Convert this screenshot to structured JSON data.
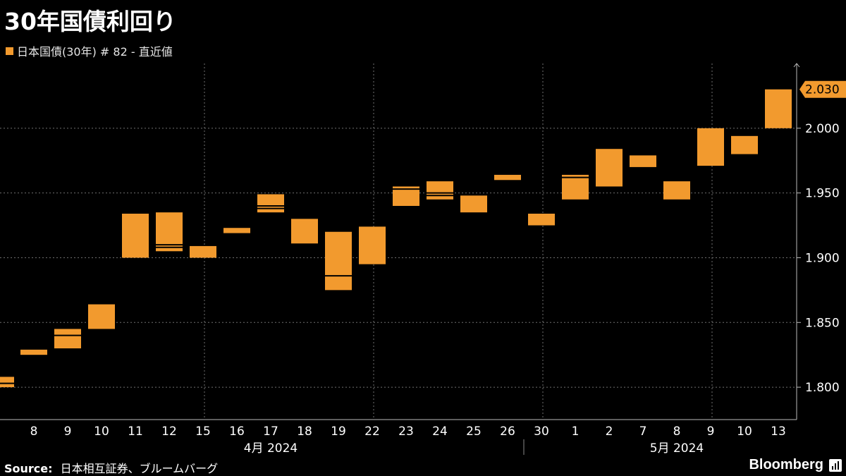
{
  "title": "30年国債利回り",
  "legend": {
    "label": "日本国債(30年) # 82 - 直近値",
    "color": "#f29a2e"
  },
  "source": {
    "label": "Source:",
    "text": "日本相互証券、ブルームバーグ"
  },
  "brand": "Bloomberg",
  "chart_data": {
    "type": "candlestick",
    "title": "30年国債利回り",
    "series_name": "日本国債(30年) # 82 - 直近値",
    "color": "#f29a2e",
    "grid": true,
    "legend_position": "top-left",
    "y_axis_position": "right",
    "ylim": [
      1.775,
      2.05
    ],
    "y_ticks": [
      1.8,
      1.85,
      1.9,
      1.95,
      2.0
    ],
    "y_tick_labels": [
      "1.800",
      "1.850",
      "1.900",
      "1.950",
      "2.000"
    ],
    "last_value_label": "2.030",
    "last_value": 2.03,
    "partial_first": {
      "open": 1.808,
      "high": 1.808,
      "low": 1.8,
      "close": 1.803
    },
    "categories": [
      "8",
      "9",
      "10",
      "11",
      "12",
      "15",
      "16",
      "17",
      "18",
      "19",
      "22",
      "23",
      "24",
      "25",
      "26",
      "30",
      "1",
      "2",
      "7",
      "8",
      "9",
      "10",
      "13"
    ],
    "candles": [
      {
        "open": 1.825,
        "high": 1.829,
        "low": 1.825,
        "close": 1.829
      },
      {
        "open": 1.83,
        "high": 1.845,
        "low": 1.83,
        "close": 1.84
      },
      {
        "open": 1.845,
        "high": 1.864,
        "low": 1.845,
        "close": 1.864
      },
      {
        "open": 1.9,
        "high": 1.934,
        "low": 1.9,
        "close": 1.934
      },
      {
        "open": 1.91,
        "high": 1.935,
        "low": 1.905,
        "close": 1.908
      },
      {
        "open": 1.9,
        "high": 1.909,
        "low": 1.9,
        "close": 1.909
      },
      {
        "open": 1.919,
        "high": 1.923,
        "low": 1.919,
        "close": 1.923
      },
      {
        "open": 1.94,
        "high": 1.949,
        "low": 1.935,
        "close": 1.938
      },
      {
        "open": 1.911,
        "high": 1.93,
        "low": 1.911,
        "close": 1.93
      },
      {
        "open": 1.92,
        "high": 1.92,
        "low": 1.875,
        "close": 1.886
      },
      {
        "open": 1.895,
        "high": 1.924,
        "low": 1.895,
        "close": 1.924
      },
      {
        "open": 1.94,
        "high": 1.955,
        "low": 1.94,
        "close": 1.953
      },
      {
        "open": 1.95,
        "high": 1.959,
        "low": 1.945,
        "close": 1.948
      },
      {
        "open": 1.935,
        "high": 1.948,
        "low": 1.935,
        "close": 1.948
      },
      {
        "open": 1.96,
        "high": 1.964,
        "low": 1.96,
        "close": 1.964
      },
      {
        "open": 1.925,
        "high": 1.934,
        "low": 1.925,
        "close": 1.934
      },
      {
        "open": 1.945,
        "high": 1.964,
        "low": 1.945,
        "close": 1.962
      },
      {
        "open": 1.955,
        "high": 1.984,
        "low": 1.955,
        "close": 1.984
      },
      {
        "open": 1.97,
        "high": 1.979,
        "low": 1.97,
        "close": 1.979
      },
      {
        "open": 1.945,
        "high": 1.959,
        "low": 1.945,
        "close": 1.959
      },
      {
        "open": 1.971,
        "high": 2.0,
        "low": 1.971,
        "close": 2.0
      },
      {
        "open": 1.98,
        "high": 1.994,
        "low": 1.98,
        "close": 1.994
      },
      {
        "open": 2.0,
        "high": 2.03,
        "low": 2.0,
        "close": 2.03
      }
    ],
    "month_labels": [
      {
        "label": "4月 2024",
        "from": 0,
        "to": 14
      },
      {
        "label": "5月 2024",
        "from": 16,
        "to": 22
      }
    ],
    "month_separator_after": 14.5
  }
}
